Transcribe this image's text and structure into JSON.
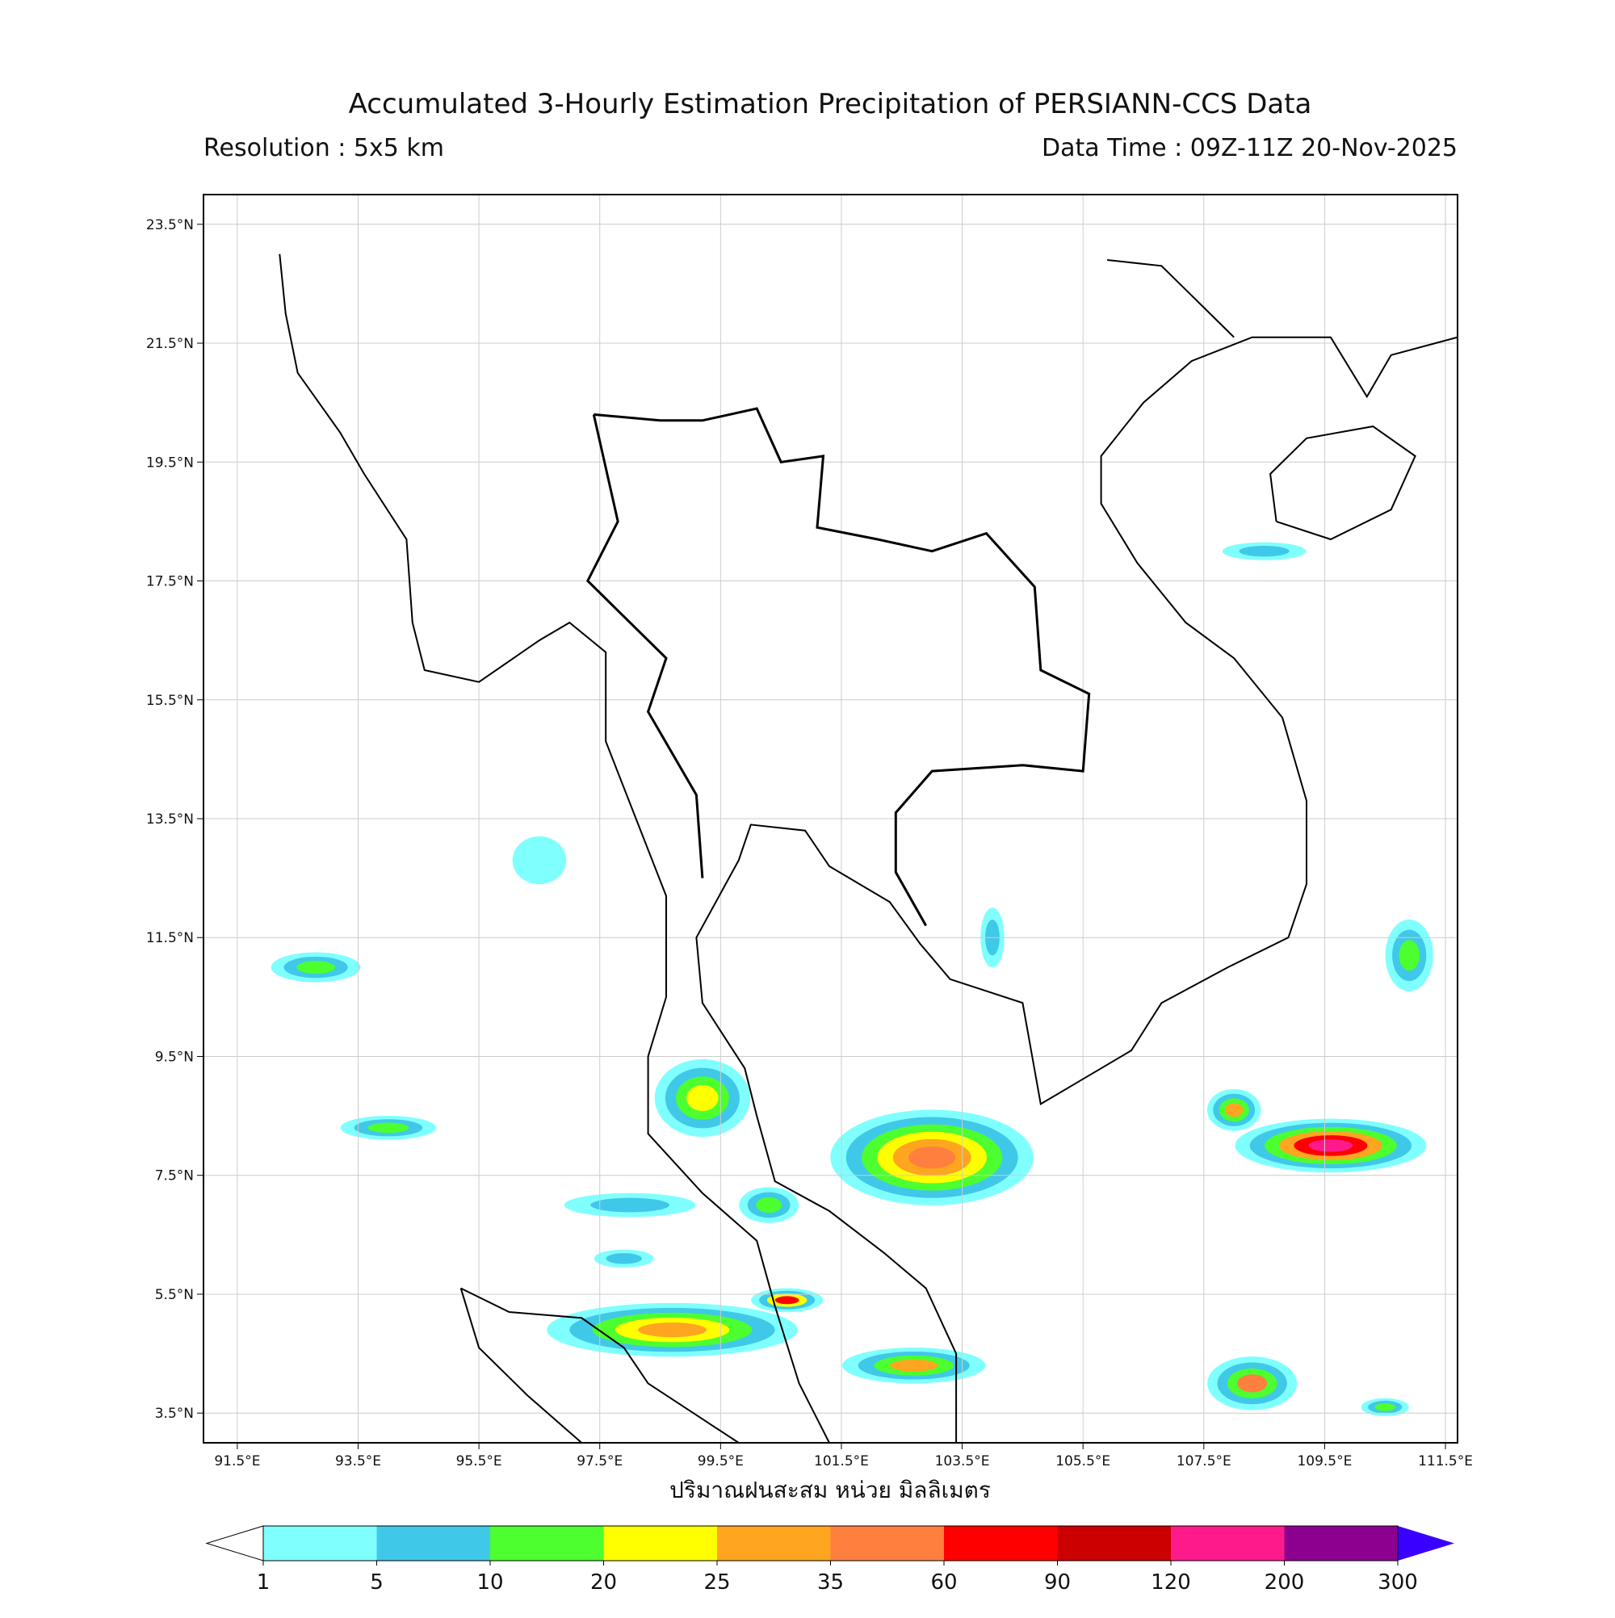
{
  "title": "Accumulated 3-Hourly Estimation Precipitation of PERSIANN-CCS Data",
  "resolution": "Resolution : 5x5 km",
  "data_time": "Data Time : 09Z-11Z 20-Nov-2025",
  "map": {
    "xlim": [
      90.94,
      111.7
    ],
    "ylim": [
      3.0,
      24.0
    ],
    "xticks": [
      {
        "value": 91.5,
        "label": "91.5°E"
      },
      {
        "value": 93.5,
        "label": "93.5°E"
      },
      {
        "value": 95.5,
        "label": "95.5°E"
      },
      {
        "value": 97.5,
        "label": "97.5°E"
      },
      {
        "value": 99.5,
        "label": "99.5°E"
      },
      {
        "value": 101.5,
        "label": "101.5°E"
      },
      {
        "value": 103.5,
        "label": "103.5°E"
      },
      {
        "value": 105.5,
        "label": "105.5°E"
      },
      {
        "value": 107.5,
        "label": "107.5°E"
      },
      {
        "value": 109.5,
        "label": "109.5°E"
      },
      {
        "value": 111.5,
        "label": "111.5°E"
      }
    ],
    "yticks": [
      {
        "value": 3.5,
        "label": "3.5°N"
      },
      {
        "value": 5.5,
        "label": "5.5°N"
      },
      {
        "value": 7.5,
        "label": "7.5°N"
      },
      {
        "value": 9.5,
        "label": "9.5°N"
      },
      {
        "value": 11.5,
        "label": "11.5°N"
      },
      {
        "value": 13.5,
        "label": "13.5°N"
      },
      {
        "value": 15.5,
        "label": "15.5°N"
      },
      {
        "value": 17.5,
        "label": "17.5°N"
      },
      {
        "value": 19.5,
        "label": "19.5°N"
      },
      {
        "value": 21.5,
        "label": "21.5°N"
      },
      {
        "value": 23.5,
        "label": "23.5°N"
      }
    ],
    "grid": true
  },
  "colorbar": {
    "label": "ปริมาณฝนสะสม หน่วย มิลลิเมตร",
    "bounds": [
      1,
      5,
      10,
      20,
      25,
      35,
      60,
      90,
      120,
      200,
      300
    ],
    "colors": [
      "#80ffff",
      "#40c8e8",
      "#4dff2e",
      "#ffff00",
      "#ffa520",
      "#ff7f3f",
      "#ff0000",
      "#cc0000",
      "#ff1a8c",
      "#8c0090"
    ],
    "under_color": "#ffffff",
    "over_color": "#3a00ff"
  }
}
